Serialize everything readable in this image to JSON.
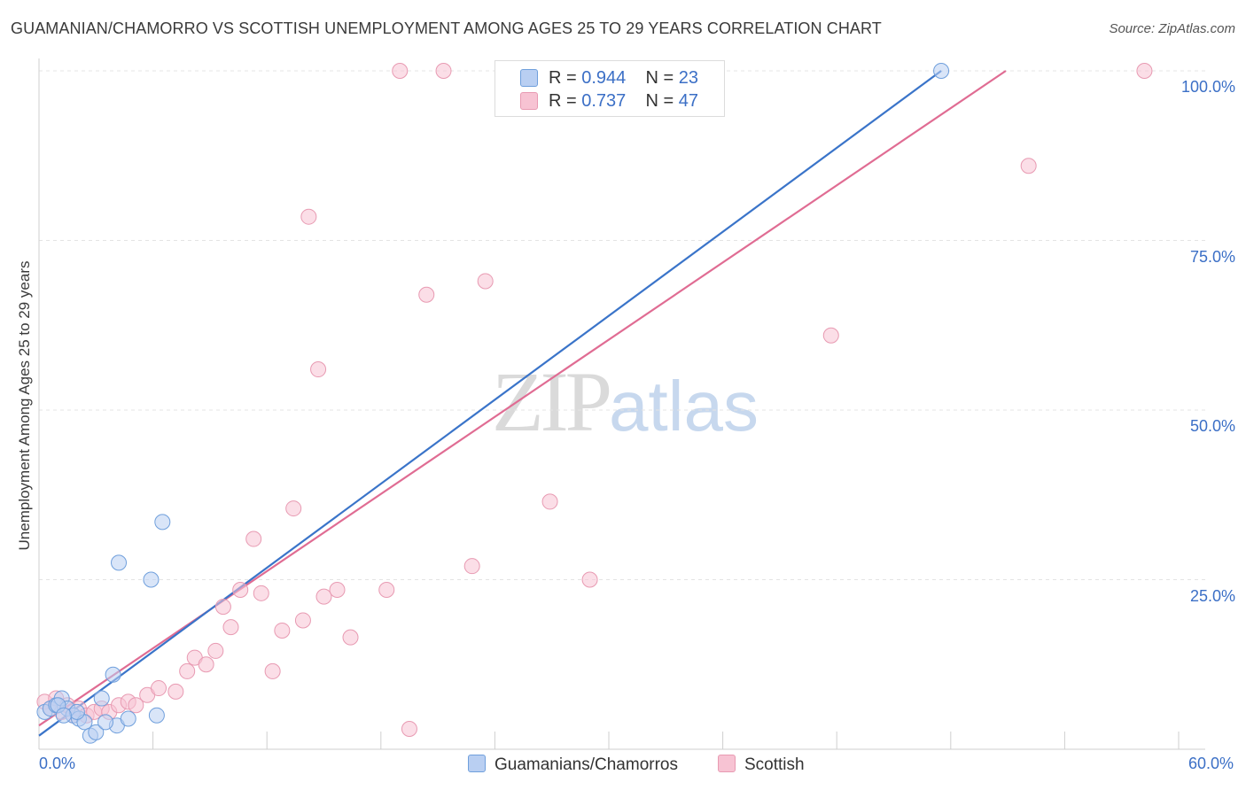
{
  "header": {
    "title": "GUAMANIAN/CHAMORRO VS SCOTTISH UNEMPLOYMENT AMONG AGES 25 TO 29 YEARS CORRELATION CHART",
    "source": "Source: ZipAtlas.com"
  },
  "watermark": {
    "zip": "ZIP",
    "atlas": "atlas"
  },
  "colors": {
    "blue_fill": "#b9cff2",
    "blue_stroke": "#6f9fdc",
    "blue_line": "#3a74c9",
    "pink_fill": "#f7c3d3",
    "pink_stroke": "#e89ab2",
    "pink_line": "#e06c93",
    "grid": "#e4e4e4",
    "axis_text": "#3b6fc6"
  },
  "legend": {
    "series": [
      {
        "r_label": "R =",
        "r_value": "0.944",
        "n_label": "N =",
        "n_value": "23"
      },
      {
        "r_label": "R =",
        "r_value": "0.737",
        "n_label": "N =",
        "n_value": "47"
      }
    ]
  },
  "bottom_legend": {
    "blue": "Guamanians/Chamorros",
    "pink": "Scottish"
  },
  "chart_data": {
    "type": "scatter",
    "title": "GUAMANIAN/CHAMORRO VS SCOTTISH UNEMPLOYMENT AMONG AGES 25 TO 29 YEARS CORRELATION CHART",
    "xlabel": "",
    "ylabel": "Unemployment Among Ages 25 to 29 years",
    "xlim": [
      0,
      60
    ],
    "ylim": [
      0,
      100
    ],
    "x_tick_labels": {
      "min": "0.0%",
      "max": "60.0%"
    },
    "y_tick_labels": [
      "25.0%",
      "50.0%",
      "75.0%",
      "100.0%"
    ],
    "y_ticks": [
      25,
      50,
      75,
      100
    ],
    "grid": true,
    "series": [
      {
        "name": "Guamanians/Chamorros",
        "r": 0.944,
        "n": 23,
        "trend": {
          "x0": 0,
          "y0": 2,
          "x1": 47.5,
          "y1": 100
        },
        "points": [
          {
            "x": 0.3,
            "y": 5.5
          },
          {
            "x": 0.6,
            "y": 6.0
          },
          {
            "x": 0.9,
            "y": 6.5
          },
          {
            "x": 1.2,
            "y": 7.5
          },
          {
            "x": 1.5,
            "y": 6.0
          },
          {
            "x": 1.8,
            "y": 5.0
          },
          {
            "x": 2.1,
            "y": 4.5
          },
          {
            "x": 2.4,
            "y": 4.0
          },
          {
            "x": 2.7,
            "y": 2.0
          },
          {
            "x": 3.0,
            "y": 2.5
          },
          {
            "x": 3.3,
            "y": 7.5
          },
          {
            "x": 3.9,
            "y": 11.0
          },
          {
            "x": 4.1,
            "y": 3.5
          },
          {
            "x": 4.2,
            "y": 27.5
          },
          {
            "x": 4.7,
            "y": 4.5
          },
          {
            "x": 5.9,
            "y": 25.0
          },
          {
            "x": 6.5,
            "y": 33.5
          },
          {
            "x": 6.2,
            "y": 5.0
          },
          {
            "x": 1.0,
            "y": 6.5
          },
          {
            "x": 2.0,
            "y": 5.5
          },
          {
            "x": 3.5,
            "y": 4.0
          },
          {
            "x": 1.3,
            "y": 5.0
          },
          {
            "x": 47.5,
            "y": 100.0
          }
        ]
      },
      {
        "name": "Scottish",
        "r": 0.737,
        "n": 47,
        "trend": {
          "x0": 0,
          "y0": 3.5,
          "x1": 50.9,
          "y1": 100
        },
        "points": [
          {
            "x": 0.3,
            "y": 7.0
          },
          {
            "x": 0.6,
            "y": 6.0
          },
          {
            "x": 0.9,
            "y": 7.5
          },
          {
            "x": 1.2,
            "y": 5.5
          },
          {
            "x": 1.5,
            "y": 6.5
          },
          {
            "x": 1.8,
            "y": 5.0
          },
          {
            "x": 2.1,
            "y": 6.0
          },
          {
            "x": 2.5,
            "y": 5.0
          },
          {
            "x": 2.9,
            "y": 5.5
          },
          {
            "x": 3.3,
            "y": 6.0
          },
          {
            "x": 3.7,
            "y": 5.5
          },
          {
            "x": 4.2,
            "y": 6.5
          },
          {
            "x": 4.7,
            "y": 7.0
          },
          {
            "x": 5.1,
            "y": 6.5
          },
          {
            "x": 5.7,
            "y": 8.0
          },
          {
            "x": 6.3,
            "y": 9.0
          },
          {
            "x": 7.2,
            "y": 8.5
          },
          {
            "x": 7.8,
            "y": 11.5
          },
          {
            "x": 8.2,
            "y": 13.5
          },
          {
            "x": 8.8,
            "y": 12.5
          },
          {
            "x": 9.3,
            "y": 14.5
          },
          {
            "x": 9.7,
            "y": 21.0
          },
          {
            "x": 10.1,
            "y": 18.0
          },
          {
            "x": 10.6,
            "y": 23.5
          },
          {
            "x": 11.3,
            "y": 31.0
          },
          {
            "x": 11.7,
            "y": 23.0
          },
          {
            "x": 12.3,
            "y": 11.5
          },
          {
            "x": 12.8,
            "y": 17.5
          },
          {
            "x": 13.4,
            "y": 35.5
          },
          {
            "x": 13.9,
            "y": 19.0
          },
          {
            "x": 14.2,
            "y": 78.5
          },
          {
            "x": 14.7,
            "y": 56.0
          },
          {
            "x": 15.0,
            "y": 22.5
          },
          {
            "x": 15.7,
            "y": 23.5
          },
          {
            "x": 16.4,
            "y": 16.5
          },
          {
            "x": 18.3,
            "y": 23.5
          },
          {
            "x": 19.0,
            "y": 100.0
          },
          {
            "x": 19.5,
            "y": 3.0
          },
          {
            "x": 21.3,
            "y": 100.0
          },
          {
            "x": 20.4,
            "y": 67.0
          },
          {
            "x": 22.8,
            "y": 27.0
          },
          {
            "x": 23.5,
            "y": 69.0
          },
          {
            "x": 26.9,
            "y": 36.5
          },
          {
            "x": 29.0,
            "y": 25.0
          },
          {
            "x": 41.7,
            "y": 61.0
          },
          {
            "x": 52.1,
            "y": 86.0
          },
          {
            "x": 58.2,
            "y": 100.0
          }
        ]
      }
    ]
  }
}
